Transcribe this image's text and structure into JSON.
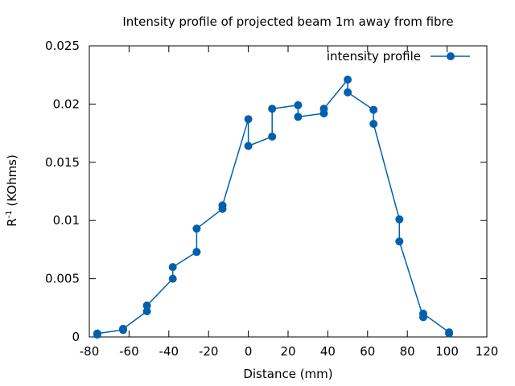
{
  "chart_data": {
    "type": "line",
    "title": "Intensity profile of projected beam 1m away from fibre",
    "xlabel": "Distance (mm)",
    "ylabel_base": "R",
    "ylabel_sup": "-1",
    "ylabel_rest": " (KOhms)",
    "xlim": [
      -80,
      120
    ],
    "ylim": [
      0,
      0.025
    ],
    "xticks": [
      -80,
      -60,
      -40,
      -20,
      0,
      20,
      40,
      60,
      80,
      100,
      120
    ],
    "xtick_labels": [
      "-80",
      "-60",
      "-40",
      "-20",
      "0",
      "20",
      "40",
      "60",
      "80",
      "100",
      "120"
    ],
    "yticks": [
      0,
      0.005,
      0.01,
      0.015,
      0.02,
      0.025
    ],
    "ytick_labels": [
      "0",
      "0.005",
      "0.01",
      "0.015",
      "0.02",
      "0.025"
    ],
    "grid": false,
    "legend_position": "top-right",
    "series": [
      {
        "name": "intensity profile",
        "color": "#0060ad",
        "marker": "circle",
        "points": [
          [
            -76,
            0.0002
          ],
          [
            -76,
            0.0003
          ],
          [
            -63,
            0.0006
          ],
          [
            -63,
            0.0007
          ],
          [
            -51,
            0.0022
          ],
          [
            -51,
            0.0027
          ],
          [
            -38,
            0.005
          ],
          [
            -38,
            0.006
          ],
          [
            -26,
            0.0073
          ],
          [
            -26,
            0.0093
          ],
          [
            -13,
            0.011
          ],
          [
            -13,
            0.0113
          ],
          [
            0,
            0.0187
          ],
          [
            0,
            0.0164
          ],
          [
            12,
            0.0172
          ],
          [
            12,
            0.0196
          ],
          [
            25,
            0.0199
          ],
          [
            25,
            0.0189
          ],
          [
            38,
            0.0192
          ],
          [
            38,
            0.0196
          ],
          [
            50,
            0.0221
          ],
          [
            50,
            0.021
          ],
          [
            63,
            0.0195
          ],
          [
            63,
            0.0183
          ],
          [
            76,
            0.0101
          ],
          [
            76,
            0.0082
          ],
          [
            88,
            0.0017
          ],
          [
            88,
            0.002
          ],
          [
            101,
            0.0004
          ],
          [
            101,
            0.0003
          ]
        ]
      }
    ]
  }
}
